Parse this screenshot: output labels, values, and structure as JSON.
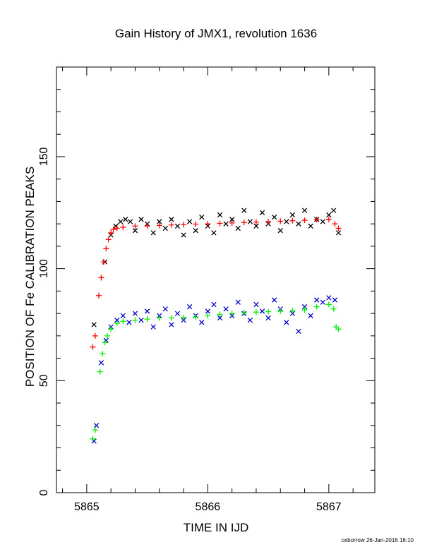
{
  "chart_data": {
    "type": "scatter",
    "title": "Gain History of JMX1, revolution 1636",
    "xlabel": "TIME IN IJD",
    "ylabel": "POSITION OF Fe CALIBRATION PEAKS",
    "xlim": [
      5864.75,
      5867.38
    ],
    "ylim": [
      0,
      190
    ],
    "xticks": [
      5865,
      5866,
      5867
    ],
    "xtick_labels": [
      "5865",
      "5866",
      "5867"
    ],
    "yticks": [
      0,
      50,
      100,
      150
    ],
    "ytick_labels": [
      "0",
      "50",
      "100",
      "150"
    ],
    "grid": false,
    "footer": "oxborrow 26-Jan-2016 16:10",
    "series": [
      {
        "marker": "x",
        "color": "#000000",
        "x": [
          5865.06,
          5865.15,
          5865.2,
          5865.24,
          5865.28,
          5865.32,
          5865.36,
          5865.4,
          5865.45,
          5865.5,
          5865.55,
          5865.6,
          5865.65,
          5865.7,
          5865.75,
          5865.8,
          5865.85,
          5865.9,
          5865.95,
          5866.0,
          5866.05,
          5866.1,
          5866.15,
          5866.2,
          5866.25,
          5866.3,
          5866.35,
          5866.4,
          5866.45,
          5866.5,
          5866.55,
          5866.6,
          5866.65,
          5866.7,
          5866.75,
          5866.8,
          5866.85,
          5866.9,
          5866.95,
          5867.0,
          5867.04,
          5867.08
        ],
        "y": [
          75,
          103,
          115,
          119,
          121,
          122,
          121,
          117,
          122,
          120,
          116,
          121,
          118,
          122,
          119,
          115,
          121,
          117,
          123,
          119,
          116,
          124,
          120,
          122,
          118,
          126,
          121,
          119,
          125,
          120,
          123,
          117,
          121,
          124,
          120,
          126,
          119,
          122,
          121,
          124,
          126,
          116
        ]
      },
      {
        "marker": "+",
        "color": "#ff0000",
        "x": [
          5865.05,
          5865.07,
          5865.1,
          5865.12,
          5865.14,
          5865.16,
          5865.18,
          5865.2,
          5865.22,
          5865.25,
          5865.3,
          5865.4,
          5865.5,
          5865.6,
          5865.7,
          5865.8,
          5865.9,
          5866.0,
          5866.1,
          5866.2,
          5866.3,
          5866.4,
          5866.5,
          5866.6,
          5866.7,
          5866.8,
          5866.9,
          5867.0,
          5867.05,
          5867.08
        ],
        "y": [
          65,
          70,
          88,
          96,
          103,
          109,
          113,
          116,
          117.5,
          118,
          118.5,
          119,
          119,
          119.3,
          119.5,
          119.7,
          119.9,
          120,
          120.2,
          120.4,
          120.6,
          120.8,
          121,
          121.2,
          121.4,
          121.6,
          121.9,
          122,
          120,
          118
        ]
      },
      {
        "marker": "x",
        "color": "#0000cc",
        "x": [
          5865.06,
          5865.08,
          5865.12,
          5865.16,
          5865.2,
          5865.25,
          5865.3,
          5865.35,
          5865.4,
          5865.45,
          5865.5,
          5865.55,
          5865.6,
          5865.65,
          5865.7,
          5865.75,
          5865.8,
          5865.85,
          5865.9,
          5865.95,
          5866.0,
          5866.05,
          5866.1,
          5866.15,
          5866.2,
          5866.25,
          5866.3,
          5866.35,
          5866.4,
          5866.45,
          5866.5,
          5866.55,
          5866.6,
          5866.65,
          5866.7,
          5866.75,
          5866.8,
          5866.85,
          5866.9,
          5866.95,
          5867.0,
          5867.05
        ],
        "y": [
          23,
          30,
          58,
          68,
          74,
          77,
          79,
          76,
          80,
          77,
          81,
          74,
          79,
          82,
          75,
          80,
          77,
          83,
          79,
          76,
          81,
          84,
          78,
          82,
          79,
          85,
          80,
          77,
          84,
          81,
          78,
          86,
          82,
          76,
          80,
          72,
          83,
          79,
          86,
          85,
          87,
          86
        ]
      },
      {
        "marker": "+",
        "color": "#00ee00",
        "x": [
          5865.05,
          5865.07,
          5865.11,
          5865.13,
          5865.15,
          5865.17,
          5865.2,
          5865.25,
          5865.3,
          5865.4,
          5865.5,
          5865.6,
          5865.7,
          5865.8,
          5865.9,
          5866.0,
          5866.1,
          5866.2,
          5866.3,
          5866.4,
          5866.5,
          5866.6,
          5866.7,
          5866.8,
          5866.9,
          5867.0,
          5867.04,
          5867.06,
          5867.08
        ],
        "y": [
          24,
          28,
          54,
          62,
          67,
          70,
          73,
          75.5,
          76.5,
          77,
          77.5,
          78,
          78,
          78.2,
          78.4,
          79,
          79.6,
          80,
          80.3,
          80.6,
          80.8,
          81,
          81.2,
          81.6,
          83,
          84,
          82,
          74,
          73
        ]
      }
    ]
  }
}
